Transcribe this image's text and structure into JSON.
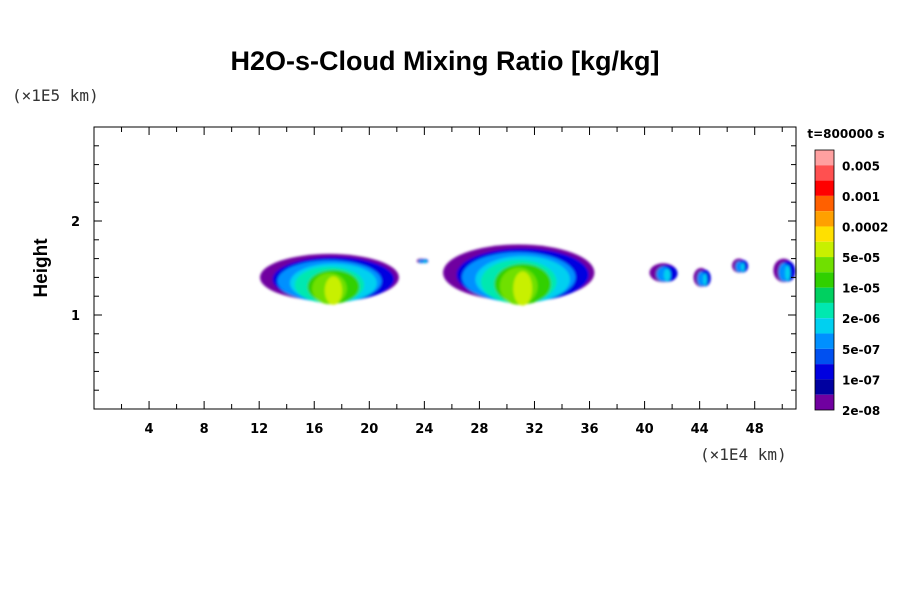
{
  "chart_data": {
    "type": "heatmap",
    "title": "H2O-s-Cloud Mixing Ratio [kg/kg]",
    "xlabel": "",
    "ylabel": "Height",
    "x_scale_note": "(×1E4 km)",
    "y_scale_note": "(×1E5 km)",
    "xlim": [
      0,
      51
    ],
    "ylim": [
      0,
      3
    ],
    "x_ticks": [
      4,
      8,
      12,
      16,
      20,
      24,
      28,
      32,
      36,
      40,
      44,
      48
    ],
    "y_ticks": [
      1,
      2
    ],
    "time_label": "t=800000 s",
    "legend": {
      "placement": "right",
      "labels": [
        "0.005",
        "0.001",
        "0.0002",
        "5e-05",
        "1e-05",
        "2e-06",
        "5e-07",
        "1e-07",
        "2e-08"
      ],
      "colors": [
        "#ffa0a0",
        "#ff5050",
        "#ff0000",
        "#ff6000",
        "#ffa000",
        "#ffe000",
        "#c8f000",
        "#70e000",
        "#30d000",
        "#00d060",
        "#00e8b0",
        "#00d0f0",
        "#0090ff",
        "#0050f0",
        "#0000e0",
        "#0000a0",
        "#7000a0"
      ]
    },
    "cloud_patches": [
      {
        "x": [
          12.2,
          22.3
        ],
        "y": [
          1.15,
          1.65
        ]
      },
      {
        "x": [
          23.6,
          24.2
        ],
        "y": [
          1.55,
          1.6
        ]
      },
      {
        "x": [
          25.5,
          36.5
        ],
        "y": [
          1.15,
          1.75
        ]
      },
      {
        "x": [
          40.5,
          42.5
        ],
        "y": [
          1.35,
          1.55
        ]
      },
      {
        "x": [
          43.7,
          44.8
        ],
        "y": [
          1.3,
          1.5
        ]
      },
      {
        "x": [
          46.5,
          47.5
        ],
        "y": [
          1.45,
          1.6
        ]
      },
      {
        "x": [
          49.5,
          51.0
        ],
        "y": [
          1.35,
          1.6
        ]
      }
    ]
  }
}
